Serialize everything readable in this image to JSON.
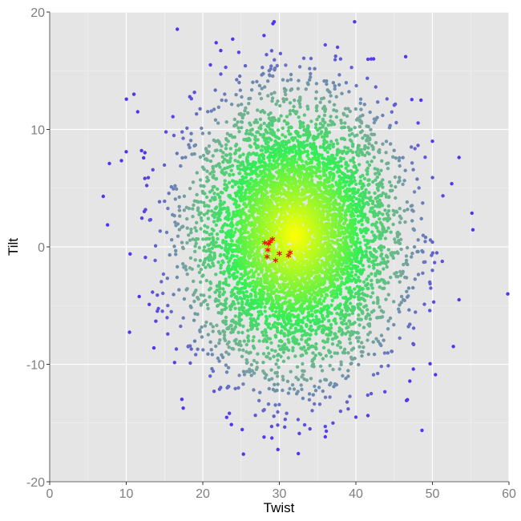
{
  "chart_data": {
    "type": "scatter",
    "title": "",
    "xlabel": "Twist",
    "ylabel": "Tilt",
    "xlim": [
      0,
      60
    ],
    "ylim": [
      -20,
      20
    ],
    "x_ticks": [
      0,
      10,
      20,
      30,
      40,
      50,
      60
    ],
    "y_ticks": [
      -20,
      -10,
      0,
      10,
      20
    ],
    "x_tick_labels": [
      "0",
      "10",
      "20",
      "30",
      "40",
      "50",
      "60"
    ],
    "y_tick_labels": [
      "-20",
      "-10",
      "0",
      "10",
      "20"
    ],
    "grid": true,
    "legend": "none",
    "colors": {
      "panel_background": "#e5e5e5",
      "grid_major": "#ffffff",
      "grid_minor": "#f2f2f2",
      "density_high": "#ffff00",
      "density_mid": "#33ee55",
      "density_low": "#77aa99",
      "density_outlier": "#5533ee",
      "highlight": "#ff0000"
    },
    "series": [
      {
        "marker": "circle",
        "color_scale": "density (yellow-high → green → teal → blue/purple-low)",
        "center": [
          32,
          1
        ],
        "spread_sd": [
          6.5,
          5.5
        ],
        "approx_points": 6000,
        "outliers": [
          [
            28,
            18
          ],
          [
            29,
            16.7
          ],
          [
            36,
            17.2
          ],
          [
            38,
            16
          ],
          [
            42,
            16
          ],
          [
            46.5,
            16.2
          ],
          [
            21,
            15.5
          ],
          [
            23,
            15.3
          ],
          [
            11,
            13
          ],
          [
            11.5,
            11.5
          ],
          [
            48.5,
            12.5
          ],
          [
            10,
            8.1
          ],
          [
            7.8,
            7.1
          ],
          [
            12,
            8.2
          ],
          [
            50,
            9
          ],
          [
            7,
            4.3
          ],
          [
            10.5,
            -0.6
          ],
          [
            12.5,
            -0.9
          ],
          [
            13,
            -4.9
          ],
          [
            50,
            0.4
          ],
          [
            50,
            -2
          ],
          [
            18.5,
            -8.7
          ],
          [
            28,
            -16.2
          ],
          [
            29,
            -15.3
          ],
          [
            34,
            -15.5
          ],
          [
            36,
            -15.3
          ],
          [
            37,
            -15
          ],
          [
            38,
            -14
          ],
          [
            39,
            -13.8
          ],
          [
            40,
            -14.5
          ],
          [
            42,
            -12.5
          ]
        ]
      },
      {
        "name": "",
        "marker": "star",
        "color": "#ff0000",
        "x": [
          28.1,
          28.6,
          28.8,
          29.1,
          28.5,
          28.4,
          29.5,
          30,
          31.2,
          31.4
        ],
        "y": [
          0.2,
          0.1,
          0.3,
          0.5,
          -0.4,
          -1.0,
          -1.3,
          -0.7,
          -0.9,
          -0.6
        ]
      }
    ]
  }
}
